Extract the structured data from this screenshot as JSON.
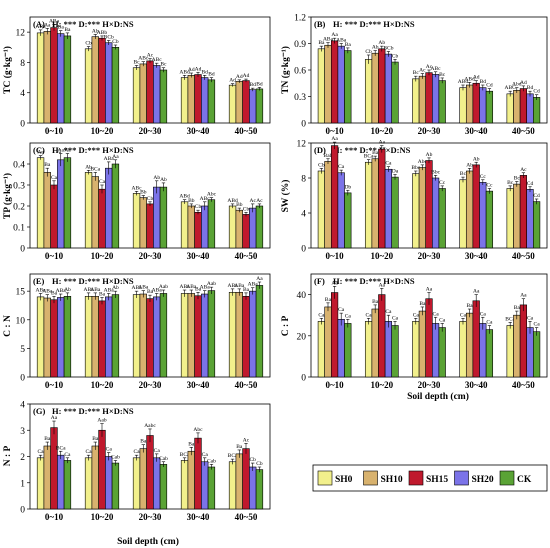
{
  "figure": {
    "x_axis_title": "Soil depth (cm)",
    "legend": [
      {
        "label": "SH0",
        "color": "#f2f08c"
      },
      {
        "label": "SH10",
        "color": "#d8b26e"
      },
      {
        "label": "SH15",
        "color": "#c0192d"
      },
      {
        "label": "SH20",
        "color": "#7b73e8"
      },
      {
        "label": "CK",
        "color": "#5aa335"
      }
    ]
  },
  "chart_data": [
    {
      "type": "bar",
      "panel": "(A)",
      "stats": "H: *** D:*** H×D:NS",
      "ylabel": "TC (g·kg⁻¹)",
      "categories": [
        "0~10",
        "10~20",
        "20~30",
        "30~40",
        "40~50"
      ],
      "ylim": [
        0,
        14
      ],
      "yticks": [
        0,
        4,
        8,
        12
      ],
      "series": [
        {
          "name": "SH0",
          "values": [
            11.9,
            9.8,
            7.3,
            6.0,
            5.0
          ],
          "err": [
            0.4,
            0.3,
            0.3,
            0.3,
            0.2
          ],
          "labels": [
            "ABa",
            "Cb",
            "Bc",
            "ABd",
            "Ad"
          ]
        },
        {
          "name": "SH10",
          "values": [
            12.1,
            11.4,
            7.8,
            6.3,
            5.5
          ],
          "err": [
            0.4,
            0.3,
            0.3,
            0.3,
            0.2
          ],
          "labels": [
            "Aa",
            "Ab",
            "ABc",
            "Ad",
            "Ad"
          ]
        },
        {
          "name": "SH15",
          "values": [
            12.6,
            11.2,
            8.2,
            6.4,
            5.6
          ],
          "err": [
            0.4,
            0.3,
            0.3,
            0.3,
            0.2
          ],
          "labels": [
            "ABa",
            "ABb",
            "Ac",
            "Ad",
            "Ad"
          ]
        },
        {
          "name": "SH20",
          "values": [
            11.8,
            10.6,
            7.6,
            6.0,
            4.4
          ],
          "err": [
            0.4,
            0.3,
            0.3,
            0.3,
            0.2
          ],
          "labels": [
            "Ba",
            "BCb",
            "ABc",
            "Bd",
            "Bd"
          ]
        },
        {
          "name": "CK",
          "values": [
            11.5,
            10.0,
            7.0,
            5.7,
            4.5
          ],
          "err": [
            0.4,
            0.3,
            0.3,
            0.3,
            0.2
          ],
          "labels": [
            "Ba",
            "Cb",
            "Bc",
            "Bd",
            "Bd"
          ]
        }
      ]
    },
    {
      "type": "bar",
      "panel": "(B)",
      "stats": "H: *** D:*** H×D:NS",
      "ylabel": "TN (g·kg⁻¹)",
      "categories": [
        "0~10",
        "10~20",
        "20~30",
        "30~40",
        "40~50"
      ],
      "ylim": [
        0,
        1.2
      ],
      "yticks": [
        0.0,
        0.3,
        0.6,
        0.9,
        1.2
      ],
      "series": [
        {
          "name": "SH0",
          "values": [
            0.84,
            0.72,
            0.5,
            0.4,
            0.33
          ],
          "err": [
            0.03,
            0.05,
            0.03,
            0.03,
            0.03
          ],
          "labels": [
            "Ba",
            "Cb",
            "Bc",
            "ABd",
            "ABC"
          ]
        },
        {
          "name": "SH10",
          "values": [
            0.88,
            0.79,
            0.53,
            0.43,
            0.37
          ],
          "err": [
            0.03,
            0.03,
            0.03,
            0.03,
            0.03
          ],
          "labels": [
            "ABa",
            "Ab",
            "Ac",
            "ABd",
            "Abd"
          ]
        },
        {
          "name": "SH15",
          "values": [
            0.93,
            0.84,
            0.57,
            0.45,
            0.39
          ],
          "err": [
            0.03,
            0.03,
            0.03,
            0.03,
            0.03
          ],
          "labels": [
            "Aa",
            "Ab",
            "Ac",
            "Ad",
            "Ad"
          ]
        },
        {
          "name": "SH20",
          "values": [
            0.87,
            0.78,
            0.55,
            0.4,
            0.33
          ],
          "err": [
            0.03,
            0.03,
            0.03,
            0.03,
            0.03
          ],
          "labels": [
            "ABa",
            "BCb",
            "ABc",
            "Bd",
            "Bd"
          ]
        },
        {
          "name": "CK",
          "values": [
            0.82,
            0.69,
            0.48,
            0.36,
            0.29
          ],
          "err": [
            0.03,
            0.03,
            0.03,
            0.03,
            0.03
          ],
          "labels": [
            "Ba",
            "Cb",
            "Bc",
            "Cd",
            "Cd"
          ]
        }
      ]
    },
    {
      "type": "bar",
      "panel": "(C)",
      "stats": "H: *** D:*** H×D:NS",
      "ylabel": "TP (g·kg⁻¹)",
      "categories": [
        "0~10",
        "10~20",
        "20~30",
        "30~40",
        "40~50"
      ],
      "ylim": [
        0,
        0.5
      ],
      "yticks": [
        0.0,
        0.1,
        0.2,
        0.3,
        0.4
      ],
      "series": [
        {
          "name": "SH0",
          "values": [
            0.43,
            0.36,
            0.26,
            0.22,
            0.2
          ],
          "err": [
            0.01,
            0.01,
            0.01,
            0.01,
            0.01
          ],
          "labels": [
            "Aa",
            "Ab",
            "ABc",
            "ABd",
            "ABd"
          ]
        },
        {
          "name": "SH10",
          "values": [
            0.36,
            0.34,
            0.24,
            0.2,
            0.18
          ],
          "err": [
            0.02,
            0.02,
            0.01,
            0.01,
            0.01
          ],
          "labels": [
            "Ba",
            "BCa",
            "Bb",
            "Bb",
            "Bb"
          ]
        },
        {
          "name": "SH15",
          "values": [
            0.3,
            0.28,
            0.21,
            0.17,
            0.16
          ],
          "err": [
            0.02,
            0.02,
            0.01,
            0.01,
            0.01
          ],
          "labels": [
            "Ca",
            "Ca",
            "Cb",
            "Cb",
            "Cb"
          ]
        },
        {
          "name": "SH20",
          "values": [
            0.42,
            0.38,
            0.29,
            0.2,
            0.19
          ],
          "err": [
            0.03,
            0.03,
            0.03,
            0.02,
            0.02
          ],
          "labels": [
            "Aa",
            "ABa",
            "Ab",
            "ABc",
            "Ac"
          ]
        },
        {
          "name": "CK",
          "values": [
            0.43,
            0.4,
            0.29,
            0.23,
            0.2
          ],
          "err": [
            0.02,
            0.02,
            0.02,
            0.01,
            0.01
          ],
          "labels": [
            "Aa",
            "Aa",
            "Ab",
            "Abc",
            "Ac"
          ]
        }
      ]
    },
    {
      "type": "bar",
      "panel": "(D)",
      "stats": "H: *** D:** H×D:NS",
      "ylabel": "SW (%)",
      "categories": [
        "0~10",
        "10~20",
        "20~30",
        "30~40",
        "40~50"
      ],
      "ylim": [
        0,
        12
      ],
      "yticks": [
        0,
        4,
        8,
        12
      ],
      "series": [
        {
          "name": "SH0",
          "values": [
            8.8,
            9.8,
            8.5,
            7.8,
            6.8
          ],
          "err": [
            0.3,
            0.3,
            0.3,
            0.3,
            0.3
          ],
          "labels": [
            "Cb",
            "BCa",
            "Bbc",
            "Bc",
            "Bc"
          ]
        },
        {
          "name": "SH10",
          "values": [
            9.9,
            10.2,
            9.2,
            8.8,
            7.3
          ],
          "err": [
            0.3,
            0.3,
            0.3,
            0.3,
            0.3
          ],
          "labels": [
            "Bab",
            "Ba",
            "Abc",
            "Ab",
            "Bc"
          ]
        },
        {
          "name": "SH15",
          "values": [
            11.7,
            11.3,
            10.0,
            9.5,
            8.3
          ],
          "err": [
            0.4,
            0.4,
            0.3,
            0.3,
            0.3
          ],
          "labels": [
            "Aa",
            "Aa",
            "Ab",
            "Ab",
            "Ac"
          ]
        },
        {
          "name": "SH20",
          "values": [
            8.6,
            9.0,
            8.0,
            7.5,
            6.7
          ],
          "err": [
            0.3,
            0.3,
            0.3,
            0.3,
            0.3
          ],
          "labels": [
            "Ca",
            "Ca",
            "Bbc",
            "Cc",
            "Cd"
          ]
        },
        {
          "name": "CK",
          "values": [
            6.3,
            8.1,
            6.8,
            6.5,
            5.3
          ],
          "err": [
            0.3,
            0.3,
            0.3,
            0.3,
            0.3
          ],
          "labels": [
            "Db",
            "Da",
            "Cc",
            "Cc",
            "Cd"
          ]
        }
      ]
    },
    {
      "type": "bar",
      "panel": "(E)",
      "stats": "H: *** D:*** H×D:NS",
      "ylabel": "C : N",
      "categories": [
        "0~10",
        "10~20",
        "20~30",
        "30~40",
        "40~50"
      ],
      "ylim": [
        0,
        18
      ],
      "yticks": [
        0,
        5,
        10,
        15
      ],
      "series": [
        {
          "name": "SH0",
          "values": [
            14.0,
            14.1,
            14.4,
            14.6,
            14.8
          ],
          "err": [
            0.6,
            0.6,
            0.6,
            0.6,
            0.6
          ],
          "labels": [
            "ABa",
            "ABa",
            "ABa",
            "ABa",
            "ABa"
          ]
        },
        {
          "name": "SH10",
          "values": [
            13.8,
            14.1,
            14.5,
            14.6,
            14.8
          ],
          "err": [
            0.6,
            0.6,
            0.6,
            0.6,
            0.6
          ],
          "labels": [
            "ABa",
            "ABa",
            "ABa",
            "ABa",
            "ABa"
          ]
        },
        {
          "name": "SH15",
          "values": [
            13.5,
            13.3,
            13.7,
            14.2,
            14.1
          ],
          "err": [
            0.6,
            0.6,
            0.6,
            0.6,
            0.6
          ],
          "labels": [
            "Ba",
            "Ba",
            "Ba",
            "Ba",
            "Ba"
          ]
        },
        {
          "name": "SH20",
          "values": [
            13.9,
            14.0,
            14.0,
            14.5,
            15.0
          ],
          "err": [
            0.6,
            0.6,
            0.6,
            0.6,
            0.6
          ],
          "labels": [
            "ABa",
            "ABa",
            "ABa",
            "ABa",
            "ABa"
          ]
        },
        {
          "name": "CK",
          "values": [
            14.1,
            14.4,
            14.6,
            15.1,
            16.0
          ],
          "err": [
            0.6,
            0.6,
            0.6,
            0.6,
            0.6
          ],
          "labels": [
            "Ab",
            "Ab",
            "Aab",
            "Aab",
            "Aa"
          ]
        }
      ]
    },
    {
      "type": "bar",
      "panel": "(F)",
      "stats": "H: *** D:*** H×D:NS",
      "ylabel": "C : P",
      "categories": [
        "0~10",
        "10~20",
        "20~30",
        "30~40",
        "40~50"
      ],
      "ylim": [
        0,
        50
      ],
      "yticks": [
        0,
        20,
        40
      ],
      "series": [
        {
          "name": "SH0",
          "values": [
            27,
            27,
            27,
            27,
            25
          ],
          "err": [
            1.5,
            1.5,
            1.5,
            1.5,
            1.5
          ],
          "labels": [
            "Ca",
            "Ca",
            "Ca",
            "Ca",
            "BCa"
          ]
        },
        {
          "name": "SH10",
          "values": [
            34,
            33,
            32,
            31,
            30
          ],
          "err": [
            2,
            2,
            2,
            2,
            2
          ],
          "labels": [
            "Ba",
            "Ba",
            "Ba",
            "Ba",
            "Ba"
          ]
        },
        {
          "name": "SH15",
          "values": [
            41,
            40,
            38,
            37,
            35
          ],
          "err": [
            3,
            3,
            3,
            3,
            3
          ],
          "labels": [
            "Aa",
            "Aa",
            "Aa",
            "Aa",
            "Aa"
          ]
        },
        {
          "name": "SH20",
          "values": [
            28,
            27,
            26,
            26,
            24
          ],
          "err": [
            3,
            3,
            3,
            3,
            3
          ],
          "labels": [
            "Ca",
            "Ca",
            "Ca",
            "Ca",
            "Ca"
          ]
        },
        {
          "name": "CK",
          "values": [
            26,
            25,
            24,
            23,
            22
          ],
          "err": [
            2,
            2,
            2,
            2,
            2
          ],
          "labels": [
            "Ca",
            "Ca",
            "Ca",
            "Ca",
            "Ca"
          ]
        }
      ]
    },
    {
      "type": "bar",
      "panel": "(G)",
      "stats": "H: *** D:*** H×D:NS",
      "ylabel": "N : P",
      "categories": [
        "0~10",
        "10~20",
        "20~30",
        "30~40",
        "40~50"
      ],
      "ylim": [
        0,
        4
      ],
      "yticks": [
        0,
        1,
        2,
        3,
        4
      ],
      "series": [
        {
          "name": "SH0",
          "values": [
            1.95,
            1.95,
            1.95,
            1.85,
            1.8
          ],
          "err": [
            0.1,
            0.1,
            0.1,
            0.1,
            0.1
          ],
          "labels": [
            "Ca",
            "Ca",
            "Ca",
            "BCa",
            "BCa"
          ]
        },
        {
          "name": "SH10",
          "values": [
            2.4,
            2.4,
            2.3,
            2.2,
            2.1
          ],
          "err": [
            0.15,
            0.15,
            0.15,
            0.15,
            0.15
          ],
          "labels": [
            "Ba",
            "Ba",
            "Ba",
            "Ba",
            "Ba"
          ]
        },
        {
          "name": "SH15",
          "values": [
            3.1,
            3.0,
            2.8,
            2.7,
            2.3
          ],
          "err": [
            0.25,
            0.25,
            0.25,
            0.2,
            0.2
          ],
          "labels": [
            "Aa",
            "Aab",
            "Aabc",
            "Abc",
            "Ac"
          ]
        },
        {
          "name": "SH20",
          "values": [
            2.05,
            2.0,
            1.95,
            1.8,
            1.6
          ],
          "err": [
            0.15,
            0.15,
            0.15,
            0.15,
            0.15
          ],
          "labels": [
            "BCa",
            "Ca",
            "Ca",
            "Ca",
            "Cb"
          ]
        },
        {
          "name": "CK",
          "values": [
            1.85,
            1.75,
            1.7,
            1.6,
            1.5
          ],
          "err": [
            0.1,
            0.1,
            0.1,
            0.1,
            0.1
          ],
          "labels": [
            "Ca",
            "Cab",
            "Cab",
            "Cab",
            "Cb"
          ]
        }
      ]
    }
  ]
}
